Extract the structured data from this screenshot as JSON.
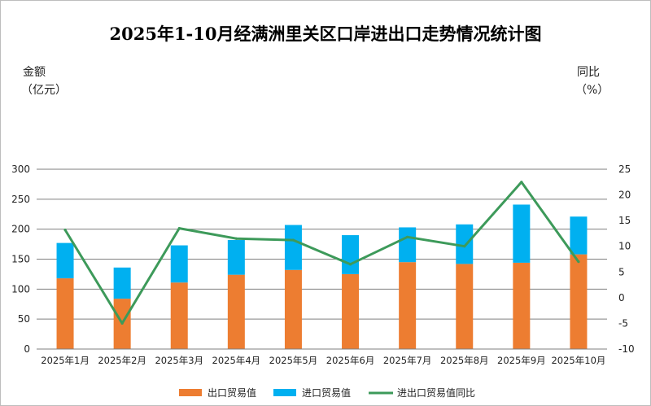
{
  "chart_data": {
    "type": "bar",
    "title": "2025年1-10月经满洲里关区口岸进出口走势情况统计图",
    "y_left_label": [
      "金额",
      "（亿元）"
    ],
    "y_right_label": [
      "同比",
      "（%）"
    ],
    "y_left_range": [
      0,
      300
    ],
    "y_left_ticks": [
      "0",
      "50",
      "100",
      "150",
      "200",
      "250",
      "300"
    ],
    "y_right_range": [
      -10,
      25
    ],
    "y_right_ticks": [
      "-10",
      "-5",
      "0",
      "5",
      "10",
      "15",
      "20",
      "25"
    ],
    "grid": true,
    "legend_position": "bottom",
    "categories": [
      "2025年1月",
      "2025年2月",
      "2025年3月",
      "2025年4月",
      "2025年5月",
      "2025年6月",
      "2025年7月",
      "2025年8月",
      "2025年9月",
      "2025年10月"
    ],
    "series": [
      {
        "name": "出口贸易值",
        "kind": "bar-stack",
        "axis": "left",
        "color": "#ED7D31",
        "values": [
          118,
          84,
          111,
          124,
          132,
          125,
          145,
          142,
          144,
          158
        ]
      },
      {
        "name": "进口贸易值",
        "kind": "bar-stack",
        "axis": "left",
        "color": "#00B0F0",
        "values": [
          59,
          52,
          62,
          58,
          75,
          65,
          58,
          66,
          97,
          63
        ]
      },
      {
        "name": "进出口贸易值同比",
        "kind": "line",
        "axis": "right",
        "color": "#3D9A5A",
        "values": [
          13.2,
          -5.0,
          13.5,
          11.5,
          11.2,
          6.5,
          11.8,
          10.0,
          22.5,
          7.0
        ]
      }
    ]
  }
}
